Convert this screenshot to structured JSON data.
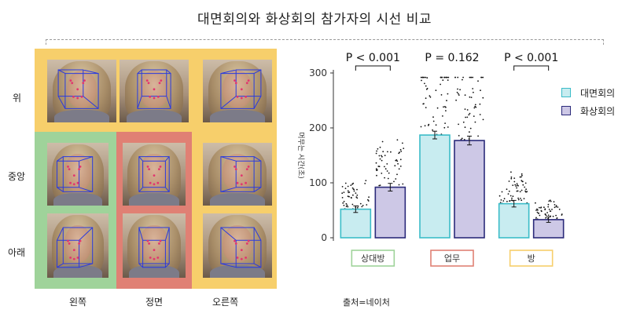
{
  "title": "대면회의와 화상회의 참가자의 시선 비교",
  "source": "출처=네이처",
  "grid": {
    "rows": [
      "위",
      "중앙",
      "아래"
    ],
    "cols": [
      "왼쪽",
      "정면",
      "오른쪽"
    ],
    "colors": {
      "room": "#f7cf6b",
      "partner": "#9fd39a",
      "work": "#e08074"
    }
  },
  "chart_data": {
    "type": "bar",
    "categories": [
      "상대방",
      "업무",
      "방"
    ],
    "category_colors": [
      "#9fd39a",
      "#e08074",
      "#f7cf6b"
    ],
    "ylabel": "머무는 시간(초)",
    "ylim": [
      0,
      300
    ],
    "yticks": [
      "0",
      "100",
      "200",
      "300"
    ],
    "series": [
      {
        "name": "대면회의",
        "values": [
          52,
          187,
          62
        ],
        "errors": [
          6,
          7,
          6
        ],
        "fill": "#c8ecf0",
        "stroke": "#3bbcc8"
      },
      {
        "name": "화상회의",
        "values": [
          92,
          177,
          33
        ],
        "errors": [
          7,
          8,
          5
        ],
        "fill": "#cdc8e6",
        "stroke": "#2b2a7a"
      }
    ],
    "pvalues": [
      "P < 0.001",
      "P = 0.162",
      "P < 0.001"
    ]
  }
}
